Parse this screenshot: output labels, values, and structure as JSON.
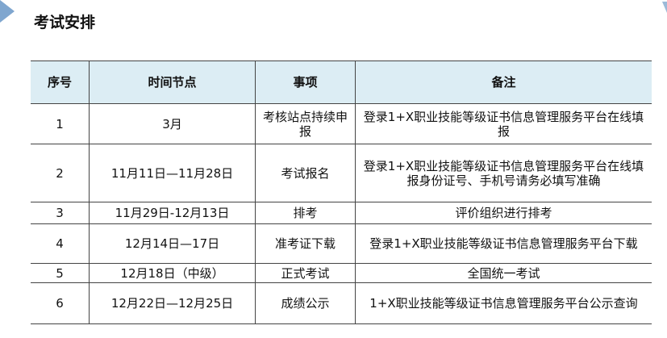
{
  "title": "考试安排",
  "table": {
    "headers": [
      "序号",
      "时间节点",
      "事项",
      "备注"
    ],
    "rows": [
      [
        "1",
        "3月",
        "考核站点持续申报",
        "登录1+X职业技能等级证书信息管理服务平台在线填报"
      ],
      [
        "2",
        "11月11日—11月28日",
        "考试报名",
        "登录1+X职业技能等级证书信息管理服务平台在线填报身份证号、手机号请务必填写准确"
      ],
      [
        "3",
        "11月29日-12月13日",
        "排考",
        "评价组织进行排考"
      ],
      [
        "4",
        "12月14日—17日",
        "准考证下载",
        "登录1+X职业技能等级证书信息管理服务平台下载"
      ],
      [
        "5",
        "12月18日（中级）",
        "正式考试",
        "全国统一考试"
      ],
      [
        "6",
        "12月22日—12月25日",
        "成绩公示",
        "1+X职业技能等级证书信息管理服务平台公示查询"
      ]
    ]
  },
  "colors": {
    "header_bg": "#dcedf4",
    "accent": "#7fa6cf"
  }
}
